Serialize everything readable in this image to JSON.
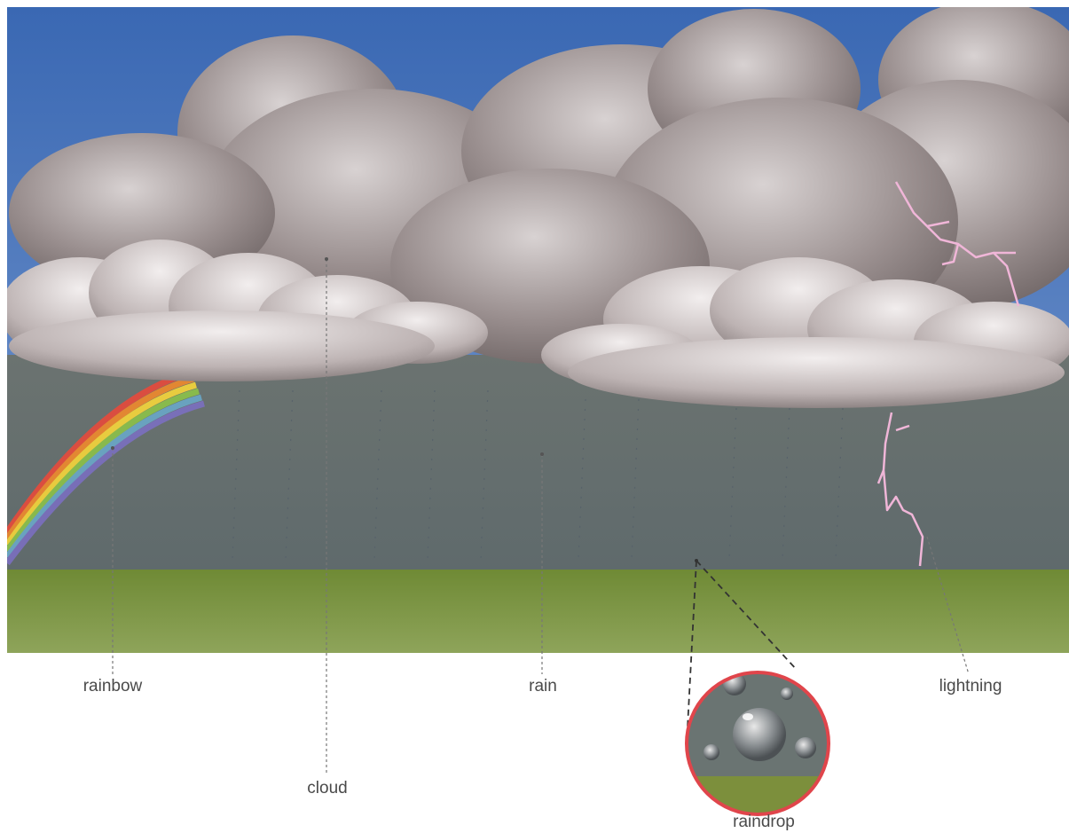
{
  "labels": {
    "rainbow": "rainbow",
    "cloud": "cloud",
    "rain": "rain",
    "lightning": "lightning",
    "raindrop": "raindrop"
  },
  "colors": {
    "sky": "#3d6fb8",
    "storm_gray": "#69747a",
    "grass": "#7c8f3c",
    "lightning": "#f0b6d8",
    "inset_ring": "#e0454b",
    "leader_line": "#777777"
  }
}
